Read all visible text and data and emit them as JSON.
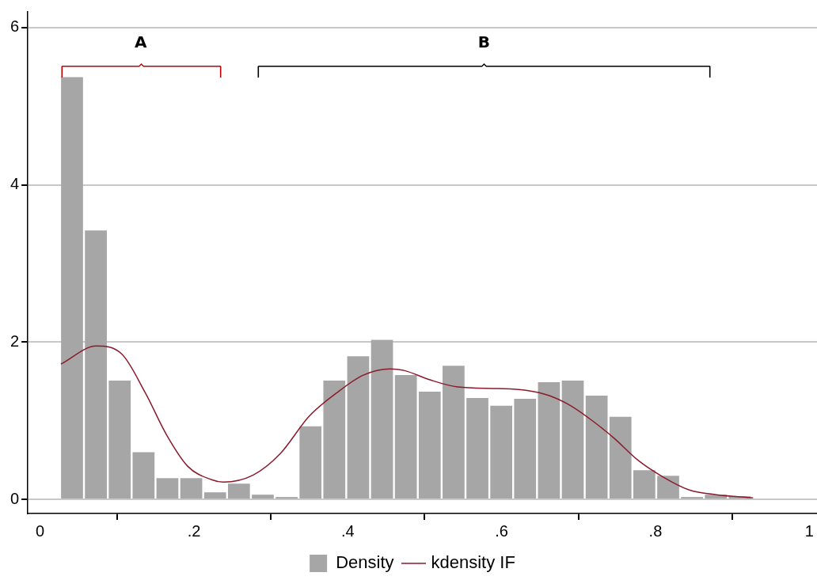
{
  "chart_data": {
    "type": "histogram",
    "bins": [
      0.026,
      0.057,
      0.088,
      0.119,
      0.15,
      0.181,
      0.212,
      0.243,
      0.274,
      0.305,
      0.336,
      0.367,
      0.398,
      0.429,
      0.46,
      0.491,
      0.522,
      0.553,
      0.584,
      0.615,
      0.646,
      0.677,
      0.708,
      0.739,
      0.77,
      0.801,
      0.832,
      0.863,
      0.894,
      0.925
    ],
    "series": [
      {
        "name": "Density",
        "color": "#a6a6a6",
        "values": [
          5.37,
          3.42,
          1.51,
          0.6,
          0.27,
          0.27,
          0.09,
          0.2,
          0.06,
          0.03,
          0.93,
          1.51,
          1.82,
          2.03,
          1.58,
          1.37,
          1.7,
          1.29,
          1.19,
          1.28,
          1.49,
          1.51,
          1.32,
          1.05,
          0.37,
          0.3,
          0.03,
          0.06,
          0.04
        ]
      },
      {
        "name": "kdensity IF",
        "type": "line",
        "color": "#8b1a2b",
        "x": [
          0.027,
          0.073,
          0.106,
          0.137,
          0.165,
          0.192,
          0.223,
          0.238,
          0.277,
          0.312,
          0.35,
          0.385,
          0.42,
          0.455,
          0.473,
          0.507,
          0.543,
          0.595,
          0.63,
          0.662,
          0.69,
          0.718,
          0.746,
          0.777,
          0.809,
          0.844,
          0.879,
          0.927
        ],
        "values": [
          1.72,
          1.95,
          1.85,
          1.35,
          0.81,
          0.42,
          0.25,
          0.22,
          0.31,
          0.58,
          1.06,
          1.35,
          1.58,
          1.66,
          1.64,
          1.52,
          1.43,
          1.41,
          1.39,
          1.32,
          1.19,
          1.0,
          0.78,
          0.5,
          0.29,
          0.12,
          0.06,
          0.02
        ]
      }
    ],
    "xlim": [
      -0.016,
      1.01
    ],
    "ylim": [
      -0.18,
      6.2
    ],
    "xticks": [
      0,
      {
        "value": 0.2,
        "label": ".2"
      },
      {
        "value": 0.4,
        "label": ".4"
      },
      {
        "value": 0.6,
        "label": ".6"
      },
      {
        "value": 0.8,
        "label": ".8"
      },
      1
    ],
    "yticks": [
      0,
      2,
      4,
      6
    ],
    "grid": "y",
    "legend": "bottom",
    "marker": "none",
    "line_style": "solid",
    "annotations": [
      "A",
      "B"
    ]
  }
}
